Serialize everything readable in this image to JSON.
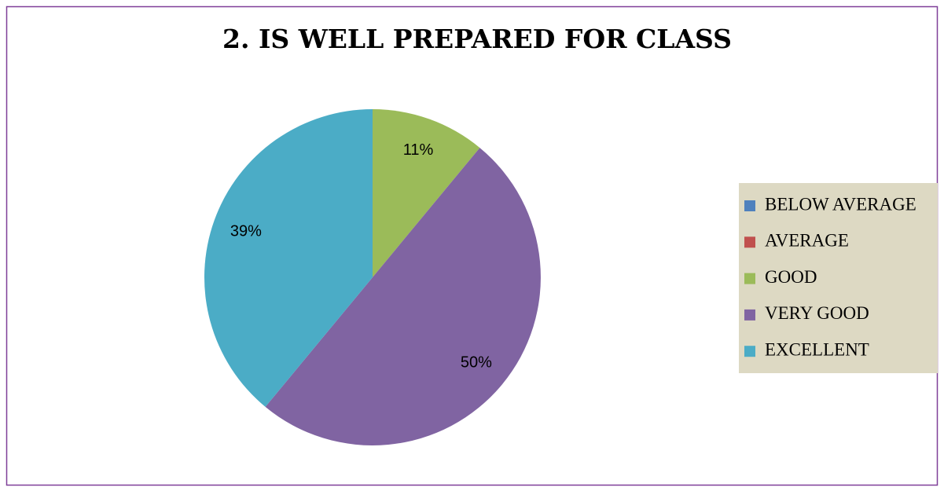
{
  "chart_data": {
    "type": "pie",
    "title": "2. IS WELL PREPARED FOR CLASS",
    "categories": [
      "BELOW AVERAGE",
      "AVERAGE",
      "GOOD",
      "VERY GOOD",
      "EXCELLENT"
    ],
    "values": [
      0,
      0,
      11,
      50,
      39
    ],
    "value_labels": [
      null,
      null,
      "11%",
      "50%",
      "39%"
    ],
    "colors": [
      "#4f81bd",
      "#c0504d",
      "#9bbb59",
      "#8064a2",
      "#4bacc6"
    ],
    "legend": "right"
  }
}
